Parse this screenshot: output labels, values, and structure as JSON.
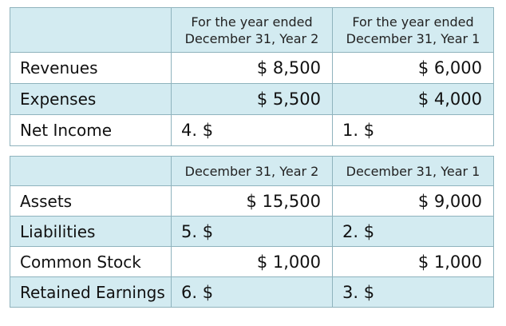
{
  "income_table": {
    "header": {
      "col2_line1": "For the year ended",
      "col2_line2": "December 31, Year 2",
      "col3_line1": "For the year ended",
      "col3_line2": "December 31, Year 1"
    },
    "rows": [
      {
        "label": "Revenues",
        "year2": "$ 8,500",
        "year1": "$ 6,000"
      },
      {
        "label": "Expenses",
        "year2": "$ 5,500",
        "year1": "$ 4,000"
      },
      {
        "label": "Net Income",
        "year2": "4. $",
        "year1": "1. $"
      }
    ]
  },
  "balance_table": {
    "header": {
      "col2": "December 31, Year 2",
      "col3": "December 31, Year 1"
    },
    "rows": [
      {
        "label": "Assets",
        "year2": "$ 15,500",
        "year1": "$ 9,000"
      },
      {
        "label": "Liabilities",
        "year2": "5. $",
        "year1": "2. $"
      },
      {
        "label": "Common Stock",
        "year2": "$ 1,000",
        "year1": "$ 1,000"
      },
      {
        "label": "Retained Earnings",
        "year2": "6. $",
        "year1": "3. $"
      }
    ]
  }
}
